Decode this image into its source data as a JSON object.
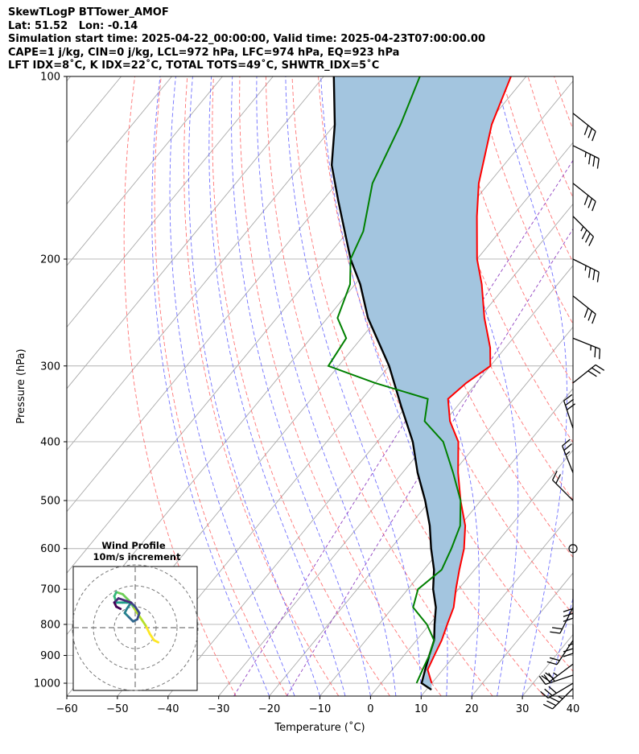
{
  "header": {
    "line1": "SkewTLogP BTTower_AMOF",
    "line2": "Lat: 51.52   Lon: -0.14",
    "line3": "Simulation start time: 2025-04-22_00:00:00, Valid time: 2025-04-23T07:00:00.00",
    "line4": "CAPE=1 j/kg, CIN=0 j/kg, LCL=972 hPa, LFC=974 hPa, EQ=923 hPa",
    "line5": "LFT IDX=8˚C, K IDX=22˚C, TOTAL TOTS=49˚C, SHWTR_IDX=5˚C"
  },
  "chart_data": {
    "type": "line",
    "subtype": "skew-T log-P diagram",
    "xlabel": "Temperature (˚C)",
    "ylabel": "Pressure (hPa)",
    "xlim": [
      -60,
      40
    ],
    "ylim": [
      1050,
      100
    ],
    "y_scale": "log",
    "x_ticks": [
      "−60",
      "−50",
      "−40",
      "−30",
      "−20",
      "−10",
      "0",
      "10",
      "20",
      "30",
      "40"
    ],
    "y_ticks": [
      "100",
      "200",
      "300",
      "400",
      "500",
      "600",
      "700",
      "800",
      "900",
      "1000"
    ],
    "grid": true,
    "series": [
      {
        "role": "temperature",
        "color": "#ff0000",
        "points": [
          [
            10,
            1000
          ],
          [
            7,
            950
          ],
          [
            6,
            900
          ],
          [
            5,
            850
          ],
          [
            3.5,
            800
          ],
          [
            2,
            750
          ],
          [
            -0.5,
            700
          ],
          [
            -3,
            650
          ],
          [
            -5.5,
            600
          ],
          [
            -9,
            550
          ],
          [
            -14,
            500
          ],
          [
            -19,
            450
          ],
          [
            -24,
            400
          ],
          [
            -29,
            370
          ],
          [
            -33,
            340
          ],
          [
            -32,
            320
          ],
          [
            -30,
            300
          ],
          [
            -33,
            280
          ],
          [
            -39,
            250
          ],
          [
            -45,
            220
          ],
          [
            -50,
            200
          ],
          [
            -57,
            170
          ],
          [
            -62,
            150
          ],
          [
            -69,
            120
          ],
          [
            -73,
            100
          ]
        ]
      },
      {
        "role": "dewpoint",
        "color": "#008000",
        "points": [
          [
            7,
            1000
          ],
          [
            6,
            950
          ],
          [
            5,
            900
          ],
          [
            3.5,
            850
          ],
          [
            -0.5,
            800
          ],
          [
            -6,
            750
          ],
          [
            -8,
            700
          ],
          [
            -6.5,
            650
          ],
          [
            -8,
            600
          ],
          [
            -10,
            550
          ],
          [
            -14,
            500
          ],
          [
            -20,
            450
          ],
          [
            -27,
            400
          ],
          [
            -34,
            370
          ],
          [
            -37,
            340
          ],
          [
            -50,
            320
          ],
          [
            -62,
            300
          ],
          [
            -63,
            270
          ],
          [
            -68,
            250
          ],
          [
            -71,
            220
          ],
          [
            -75,
            200
          ],
          [
            -77,
            180
          ],
          [
            -83,
            150
          ],
          [
            -87,
            120
          ],
          [
            -91,
            100
          ]
        ]
      },
      {
        "role": "parcel",
        "color": "#000000",
        "points": [
          [
            11,
            1025
          ],
          [
            8,
            1000
          ],
          [
            6.5,
            950
          ],
          [
            5,
            900
          ],
          [
            3.5,
            850
          ],
          [
            1,
            800
          ],
          [
            -1.5,
            750
          ],
          [
            -5,
            700
          ],
          [
            -8,
            650
          ],
          [
            -12,
            600
          ],
          [
            -16,
            550
          ],
          [
            -21,
            500
          ],
          [
            -27,
            450
          ],
          [
            -33,
            400
          ],
          [
            -41,
            350
          ],
          [
            -50,
            300
          ],
          [
            -62,
            250
          ],
          [
            -69,
            220
          ],
          [
            -75,
            200
          ],
          [
            -87,
            160
          ],
          [
            -94,
            140
          ],
          [
            -100,
            120
          ],
          [
            -108,
            100
          ]
        ]
      }
    ],
    "shaded_region": {
      "between": [
        "parcel",
        "temperature"
      ],
      "color": "#a3c5df"
    },
    "background_lines": {
      "isotherms": {
        "color": "#aaaaaa",
        "step_c": 10
      },
      "dry_adiabats": {
        "color": "#ff6666",
        "style": "dashed"
      },
      "moist_adiabats": {
        "color": "#4d4dff",
        "style": "dashed"
      },
      "mixing_ratio": {
        "color": "#9040c0",
        "style": "dashed"
      }
    },
    "wind_barbs": [
      {
        "p": 1020,
        "u": 25,
        "v": 25
      },
      {
        "p": 1000,
        "u": 25,
        "v": 15
      },
      {
        "p": 970,
        "u": 30,
        "v": 10
      },
      {
        "p": 930,
        "u": 20,
        "v": 15
      },
      {
        "p": 850,
        "u": 10,
        "v": 15
      },
      {
        "p": 800,
        "u": 0,
        "v": 25
      },
      {
        "p": 750,
        "u": 10,
        "v": 20
      },
      {
        "p": 700,
        "u": 0,
        "v": 30
      },
      {
        "p": 600,
        "u": 0,
        "v": 0
      },
      {
        "p": 500,
        "u": 15,
        "v": -15
      },
      {
        "p": 450,
        "u": 10,
        "v": -25
      },
      {
        "p": 380,
        "u": 10,
        "v": -30
      },
      {
        "p": 320,
        "u": -25,
        "v": -20
      },
      {
        "p": 270,
        "u": -25,
        "v": 10
      },
      {
        "p": 230,
        "u": -25,
        "v": 20
      },
      {
        "p": 200,
        "u": -30,
        "v": 15
      },
      {
        "p": 170,
        "u": -25,
        "v": 25
      },
      {
        "p": 150,
        "u": -25,
        "v": 20
      },
      {
        "p": 130,
        "u": -30,
        "v": 15
      },
      {
        "p": 115,
        "u": -25,
        "v": 20
      }
    ],
    "hodograph": {
      "title": "Wind Profile",
      "subtitle": "10m/s increment",
      "colormap": "viridis",
      "rings": [
        10,
        20,
        30
      ],
      "points": [
        [
          11,
          -7
        ],
        [
          9,
          -6
        ],
        [
          7,
          -3
        ],
        [
          5,
          1
        ],
        [
          3,
          4
        ],
        [
          1,
          7
        ],
        [
          -1,
          10
        ],
        [
          -3,
          13
        ],
        [
          -6,
          16
        ],
        [
          -9,
          17
        ],
        [
          -10,
          15
        ],
        [
          -9,
          12
        ],
        [
          -6,
          12
        ],
        [
          -4,
          12
        ],
        [
          -2,
          12
        ],
        [
          -4,
          9
        ],
        [
          -5,
          7
        ],
        [
          -3,
          5
        ],
        [
          -1,
          3
        ],
        [
          1,
          4
        ],
        [
          2,
          7
        ],
        [
          0,
          10
        ],
        [
          -2,
          12
        ],
        [
          -5,
          13
        ],
        [
          -8,
          14
        ],
        [
          -10,
          12
        ],
        [
          -9,
          10
        ],
        [
          -7,
          9
        ]
      ]
    }
  }
}
